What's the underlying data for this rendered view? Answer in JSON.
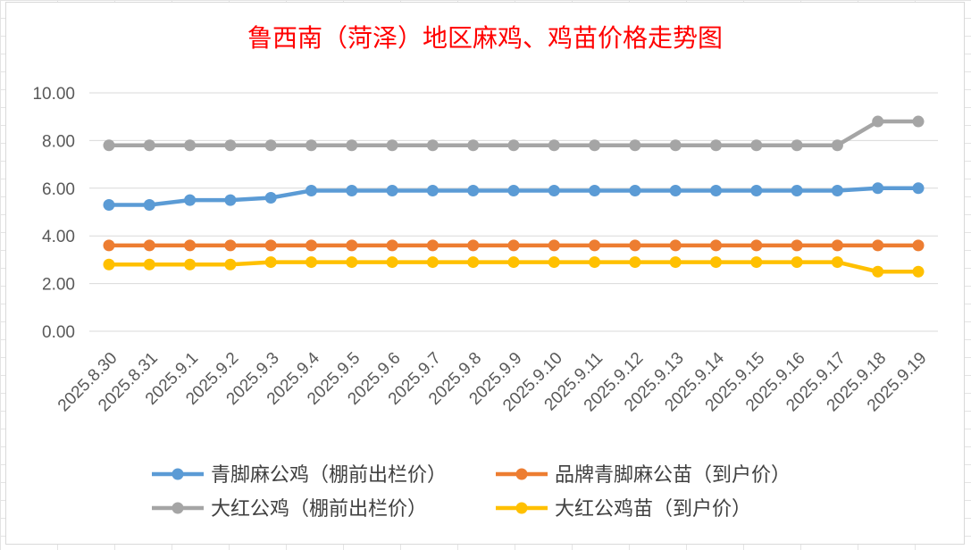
{
  "chart_data": {
    "type": "line",
    "title": "鲁西南（菏泽）地区麻鸡、鸡苗价格走势图",
    "title_color": "#ff0000",
    "categories": [
      "2025.8.30",
      "2025.8.31",
      "2025.9.1",
      "2025.9.2",
      "2025.9.3",
      "2025.9.4",
      "2025.9.5",
      "2025.9.6",
      "2025.9.7",
      "2025.9.8",
      "2025.9.9",
      "2025.9.10",
      "2025.9.11",
      "2025.9.12",
      "2025.9.13",
      "2025.9.14",
      "2025.9.15",
      "2025.9.16",
      "2025.9.17",
      "2025.9.18",
      "2025.9.19"
    ],
    "ylim": [
      0,
      10
    ],
    "yticks": [
      "0.00",
      "2.00",
      "4.00",
      "6.00",
      "8.00",
      "10.00"
    ],
    "grid": true,
    "legend_position": "bottom",
    "series": [
      {
        "name": "青脚麻公鸡（棚前出栏价）",
        "color": "#5b9bd5",
        "values": [
          5.3,
          5.3,
          5.5,
          5.5,
          5.6,
          5.9,
          5.9,
          5.9,
          5.9,
          5.9,
          5.9,
          5.9,
          5.9,
          5.9,
          5.9,
          5.9,
          5.9,
          5.9,
          5.9,
          6.0,
          6.0
        ]
      },
      {
        "name": "品牌青脚麻公苗（到户价）",
        "color": "#ed7d31",
        "values": [
          3.6,
          3.6,
          3.6,
          3.6,
          3.6,
          3.6,
          3.6,
          3.6,
          3.6,
          3.6,
          3.6,
          3.6,
          3.6,
          3.6,
          3.6,
          3.6,
          3.6,
          3.6,
          3.6,
          3.6,
          3.6
        ]
      },
      {
        "name": "大红公鸡（棚前出栏价）",
        "color": "#a5a5a5",
        "values": [
          7.8,
          7.8,
          7.8,
          7.8,
          7.8,
          7.8,
          7.8,
          7.8,
          7.8,
          7.8,
          7.8,
          7.8,
          7.8,
          7.8,
          7.8,
          7.8,
          7.8,
          7.8,
          7.8,
          8.8,
          8.8
        ]
      },
      {
        "name": "大红公鸡苗（到户价）",
        "color": "#ffc000",
        "values": [
          2.8,
          2.8,
          2.8,
          2.8,
          2.9,
          2.9,
          2.9,
          2.9,
          2.9,
          2.9,
          2.9,
          2.9,
          2.9,
          2.9,
          2.9,
          2.9,
          2.9,
          2.9,
          2.9,
          2.5,
          2.5
        ]
      }
    ]
  }
}
